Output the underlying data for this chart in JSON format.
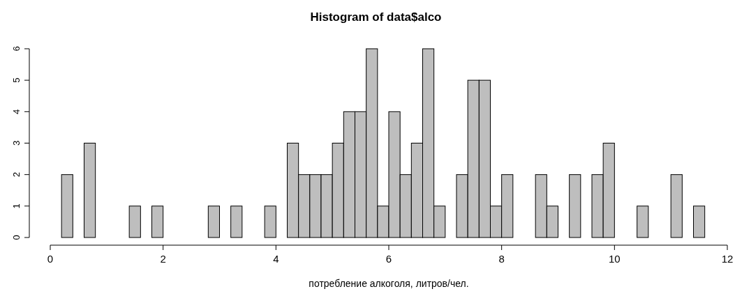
{
  "chart_data": {
    "type": "histogram",
    "title": "Histogram of data$alco",
    "xlabel": "потребление алкоголя, литров/чел.",
    "bins": [
      0.2,
      0.4,
      0.6,
      0.8,
      1.0,
      1.2,
      1.4,
      1.6,
      1.8,
      2.0,
      2.2,
      2.4,
      2.6,
      2.8,
      3.0,
      3.2,
      3.4,
      3.6,
      3.8,
      4.0,
      4.2,
      4.4,
      4.6,
      4.8,
      5.0,
      5.2,
      5.4,
      5.6,
      5.8,
      6.0,
      6.2,
      6.4,
      6.6,
      6.8,
      7.0,
      7.2,
      7.4,
      7.6,
      7.8,
      8.0,
      8.2,
      8.4,
      8.6,
      8.8,
      9.0,
      9.2,
      9.4,
      9.6,
      9.8,
      10.0,
      10.2,
      10.4,
      10.6,
      10.8,
      11.0,
      11.2,
      11.4,
      11.6
    ],
    "values": [
      2,
      0,
      3,
      0,
      0,
      0,
      1,
      0,
      1,
      0,
      0,
      0,
      0,
      1,
      0,
      1,
      0,
      0,
      1,
      0,
      3,
      2,
      2,
      2,
      3,
      4,
      4,
      6,
      1,
      4,
      2,
      3,
      6,
      1,
      0,
      2,
      5,
      5,
      1,
      2,
      0,
      0,
      2,
      1,
      0,
      2,
      0,
      2,
      3,
      0,
      0,
      1,
      0,
      0,
      2,
      0,
      1
    ],
    "color": "#bebebe",
    "xlim": [
      0,
      12
    ],
    "xticks": [
      0,
      2,
      4,
      6,
      8,
      10,
      12
    ],
    "ylim": [
      0,
      6
    ],
    "yticks": [
      0,
      1,
      2,
      3,
      4,
      5,
      6
    ],
    "grid": false
  }
}
